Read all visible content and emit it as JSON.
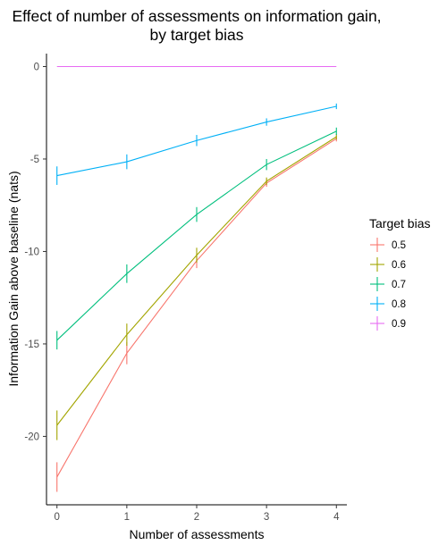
{
  "chart_data": {
    "type": "line",
    "title": "Effect of number of assessments on information gain,",
    "subtitle": "by target bias",
    "xlabel": "Number of assessments",
    "ylabel": "Information Gain above baseline (nats)",
    "x": [
      0,
      1,
      2,
      3,
      4
    ],
    "xticks": [
      "0",
      "1",
      "2",
      "3",
      "4"
    ],
    "yticks": [
      0,
      -5,
      -10,
      -15,
      -20
    ],
    "ytick_labels": [
      "0",
      "-5",
      "-10",
      "-15",
      "-20"
    ],
    "xlim": [
      -0.15,
      4.15
    ],
    "ylim": [
      -23.7,
      0.7
    ],
    "legend_title": "Target bias",
    "legend_position": "right",
    "series": [
      {
        "name": "0.5",
        "color": "#F8766D",
        "values": [
          -22.2,
          -15.5,
          -10.5,
          -6.3,
          -3.9
        ],
        "error": [
          0.8,
          0.6,
          0.4,
          0.2,
          0.15
        ]
      },
      {
        "name": "0.6",
        "color": "#A3A500",
        "values": [
          -19.4,
          -14.5,
          -10.2,
          -6.2,
          -3.8
        ],
        "error": [
          0.8,
          0.6,
          0.4,
          0.2,
          0.15
        ]
      },
      {
        "name": "0.7",
        "color": "#00BF7D",
        "values": [
          -14.8,
          -11.2,
          -8.0,
          -5.3,
          -3.5
        ],
        "error": [
          0.5,
          0.5,
          0.4,
          0.3,
          0.2
        ]
      },
      {
        "name": "0.8",
        "color": "#00B0F6",
        "values": [
          -5.9,
          -5.15,
          -4.0,
          -3.0,
          -2.15
        ],
        "error": [
          0.5,
          0.4,
          0.3,
          0.2,
          0.15
        ]
      },
      {
        "name": "0.9",
        "color": "#E76BF3",
        "values": [
          0,
          0,
          0,
          0,
          0
        ],
        "error": [
          0,
          0,
          0,
          0,
          0
        ]
      }
    ]
  }
}
